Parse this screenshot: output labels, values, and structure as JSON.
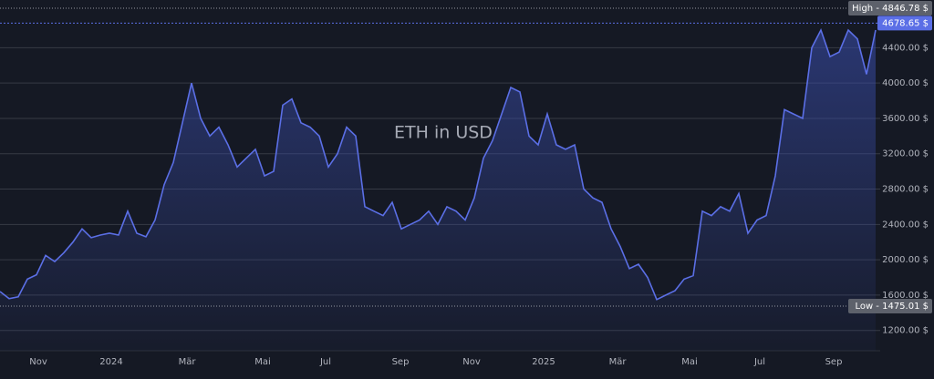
{
  "chart_data": {
    "type": "area",
    "title": "ETH in USD",
    "color": "#5b6fe6",
    "grid": true,
    "xlim": [
      0,
      96.5
    ],
    "ylim": [
      970,
      4940
    ],
    "xticks": [
      {
        "value": 4.2,
        "label": "Nov"
      },
      {
        "value": 12.2,
        "label": "2024"
      },
      {
        "value": 20.5,
        "label": "Mär"
      },
      {
        "value": 28.8,
        "label": "Mai"
      },
      {
        "value": 35.7,
        "label": "Jul"
      },
      {
        "value": 43.9,
        "label": "Sep"
      },
      {
        "value": 51.7,
        "label": "Nov"
      },
      {
        "value": 59.6,
        "label": "2025"
      },
      {
        "value": 67.7,
        "label": "Mär"
      },
      {
        "value": 75.6,
        "label": "Mai"
      },
      {
        "value": 83.3,
        "label": "Jul"
      },
      {
        "value": 91.4,
        "label": "Sep"
      }
    ],
    "yticks": [
      {
        "value": 1200,
        "label": "1200.00 $"
      },
      {
        "value": 1600,
        "label": "1600.00 $"
      },
      {
        "value": 2000,
        "label": "2000.00 $"
      },
      {
        "value": 2400,
        "label": "2400.00 $"
      },
      {
        "value": 2800,
        "label": "2800.00 $"
      },
      {
        "value": 3200,
        "label": "3200.00 $"
      },
      {
        "value": 3600,
        "label": "3600.00 $"
      },
      {
        "value": 4000,
        "label": "4000.00 $"
      },
      {
        "value": 4400,
        "label": "4400.00 $"
      }
    ],
    "high": {
      "value": 4846.78,
      "label": "High - 4846.78 $"
    },
    "low": {
      "value": 1475.01,
      "label": "Low - 1475.01 $"
    },
    "last": {
      "value": 4678.65,
      "label": "4678.65 $"
    },
    "values": [
      1640,
      1560,
      1580,
      1780,
      1830,
      2050,
      1980,
      2080,
      2200,
      2350,
      2250,
      2280,
      2300,
      2280,
      2550,
      2300,
      2260,
      2450,
      2850,
      3100,
      3550,
      4000,
      3600,
      3400,
      3500,
      3300,
      3050,
      3150,
      3250,
      2950,
      3000,
      3750,
      3820,
      3550,
      3500,
      3400,
      3050,
      3200,
      3500,
      3400,
      2600,
      2550,
      2500,
      2650,
      2350,
      2400,
      2450,
      2550,
      2400,
      2600,
      2550,
      2450,
      2700,
      3150,
      3350,
      3650,
      3950,
      3900,
      3400,
      3300,
      3650,
      3300,
      3250,
      3300,
      2800,
      2700,
      2650,
      2350,
      2150,
      1900,
      1950,
      1800,
      1550,
      1600,
      1650,
      1780,
      1820,
      2550,
      2500,
      2600,
      2550,
      2750,
      2300,
      2450,
      2500,
      2950,
      3700,
      3650,
      3600,
      4400,
      4600,
      4300,
      4350,
      4600,
      4500,
      4100,
      4600
    ]
  }
}
